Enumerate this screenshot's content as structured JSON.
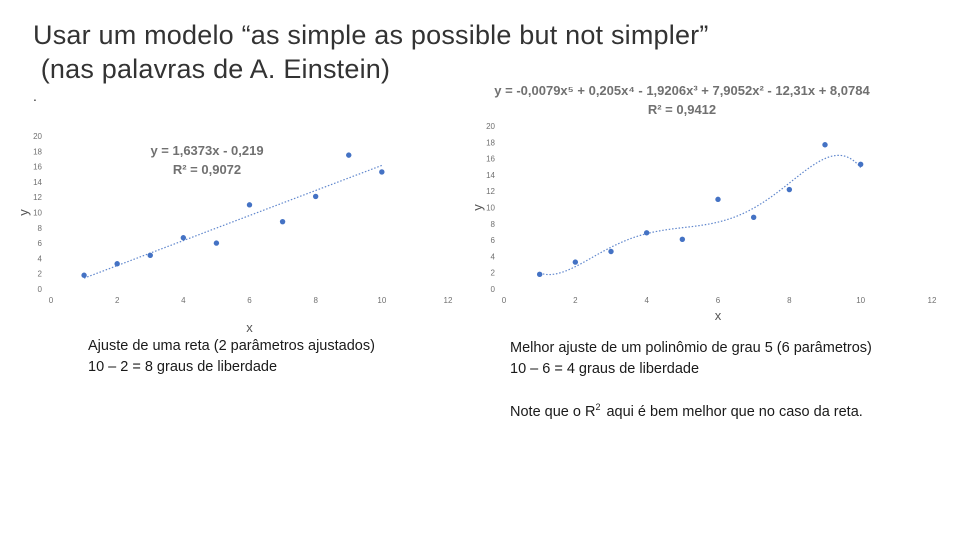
{
  "slide": {
    "title_line1": "Usar um modelo “as simple as possible but not simpler”",
    "title_line2": " (nas palavras de A. Einstein)",
    "bullet_dot": ".",
    "caption_left_line1": "Ajuste de uma reta (2 parâmetros ajustados)",
    "caption_left_line2": "10 – 2 = 8 graus de liberdade",
    "caption_right_line1": "Melhor ajuste de um polinômio de grau 5 (6 parâmetros)",
    "caption_right_line2": "10 – 6 = 4 graus de liberdade",
    "note_prefix": "Note que o R",
    "note_sup": "2",
    "note_suffix": "aqui é bem melhor que no caso da reta."
  },
  "colors": {
    "marker": "#4472c4",
    "trendline": "#4472c4",
    "equation": "#707070"
  },
  "chart_data": [
    {
      "type": "scatter",
      "title": "",
      "xlabel": "x",
      "ylabel": "y",
      "xlim": [
        0,
        12
      ],
      "ylim": [
        0,
        20
      ],
      "xticks": [
        0,
        2,
        4,
        6,
        8,
        10,
        12
      ],
      "yticks": [
        0,
        2,
        4,
        6,
        8,
        10,
        12,
        14,
        16,
        18,
        20
      ],
      "grid": false,
      "x": [
        1,
        2,
        3,
        4,
        5,
        6,
        7,
        8,
        9,
        10
      ],
      "y": [
        1.8,
        3.3,
        4.4,
        6.7,
        6.0,
        11.0,
        8.8,
        12.1,
        17.5,
        15.3
      ],
      "trendline": {
        "type": "linear",
        "coefficients": [
          1.6373,
          -0.219
        ]
      },
      "equation": "y = 1,6373x - 0,219",
      "r2": "R² = 0,9072"
    },
    {
      "type": "scatter",
      "title": "",
      "xlabel": "x",
      "ylabel": "y",
      "xlim": [
        0,
        12
      ],
      "ylim": [
        0,
        20
      ],
      "xticks": [
        0,
        2,
        4,
        6,
        8,
        10,
        12
      ],
      "yticks": [
        0,
        2,
        4,
        6,
        8,
        10,
        12,
        14,
        16,
        18,
        20
      ],
      "grid": false,
      "x": [
        1,
        2,
        3,
        4,
        5,
        6,
        7,
        8,
        9,
        10
      ],
      "y": [
        1.8,
        3.3,
        4.6,
        6.9,
        6.1,
        11.0,
        8.8,
        12.2,
        17.7,
        15.3
      ],
      "trendline": {
        "type": "polynomial",
        "degree": 5,
        "coefficients": [
          -0.0079,
          0.205,
          -1.9206,
          7.9052,
          -12.31,
          8.0784
        ]
      },
      "equation": "y = -0,0079x⁵ + 0,205x⁴ - 1,9206x³ + 7,9052x² - 12,31x + 8,0784",
      "r2": "R² = 0,9412"
    }
  ]
}
